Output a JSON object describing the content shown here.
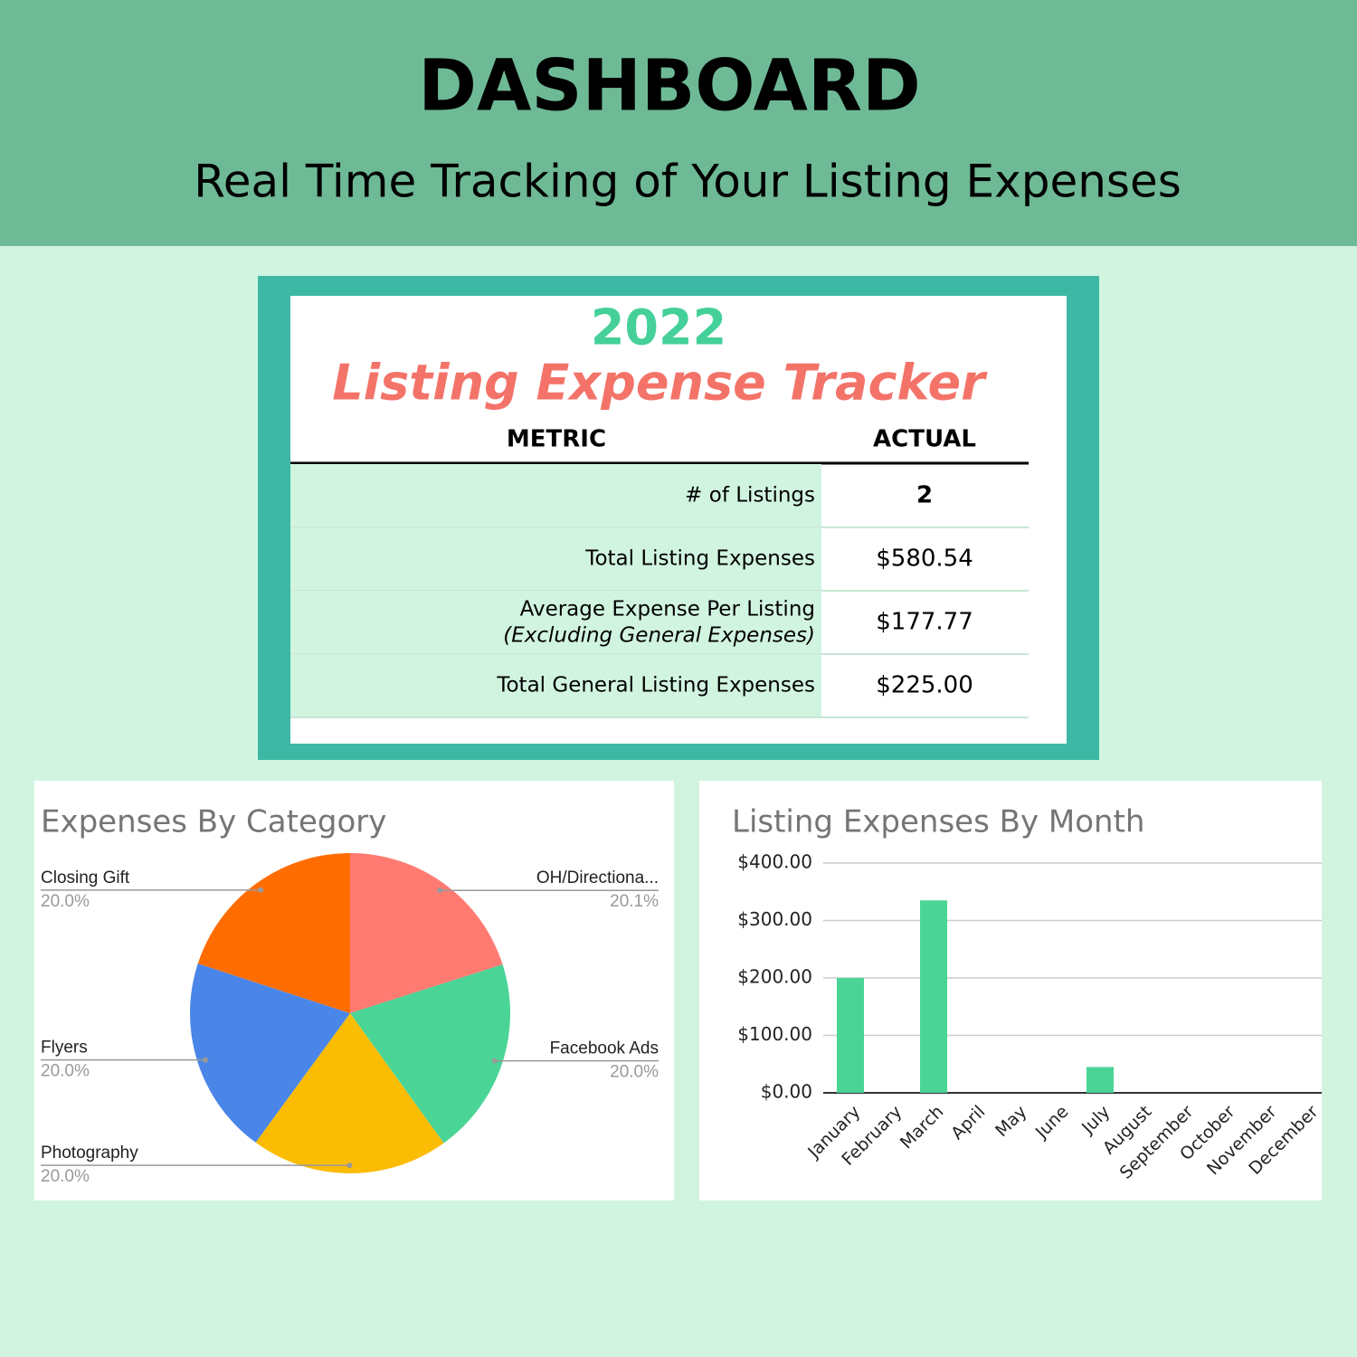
{
  "header": {
    "title": "DASHBOARD",
    "subtitle": "Real Time Tracking of Your Listing Expenses"
  },
  "tracker": {
    "year": "2022",
    "title": "Listing Expense Tracker",
    "columns": [
      "METRIC",
      "ACTUAL"
    ],
    "rows": [
      {
        "metric": "# of Listings",
        "actual": "2"
      },
      {
        "metric": "Total Listing Expenses",
        "actual": "$580.54"
      },
      {
        "metric": "Average Expense Per Listing",
        "note": "(Excluding General Expenses)",
        "actual": "$177.77"
      },
      {
        "metric": "Total General Listing Expenses",
        "actual": "$225.00"
      }
    ]
  },
  "chart_data": [
    {
      "type": "pie",
      "title": "Expenses By Category",
      "categories": [
        "OH/Directiona...",
        "Facebook Ads",
        "Photography",
        "Flyers",
        "Closing Gift"
      ],
      "values": [
        20.1,
        20.0,
        20.0,
        20.0,
        20.0
      ],
      "value_labels": [
        "20.1%",
        "20.0%",
        "20.0%",
        "20.0%",
        "20.0%"
      ],
      "colors": [
        "#ff7b72",
        "#4ad597",
        "#fbbc04",
        "#4a86e8",
        "#ff6d01"
      ]
    },
    {
      "type": "bar",
      "title": "Listing Expenses By Month",
      "categories": [
        "January",
        "February",
        "March",
        "April",
        "May",
        "June",
        "July",
        "August",
        "September",
        "October",
        "November",
        "December"
      ],
      "values": [
        200,
        0,
        335,
        0,
        0,
        0,
        45,
        0,
        0,
        0,
        0,
        0
      ],
      "color": "#4ad597",
      "ylim": [
        0,
        400
      ],
      "yticks": [
        {
          "value": 0,
          "label": "$0.00"
        },
        {
          "value": 100,
          "label": "$100.00"
        },
        {
          "value": 200,
          "label": "$200.00"
        },
        {
          "value": 300,
          "label": "$300.00"
        },
        {
          "value": 400,
          "label": "$400.00"
        }
      ],
      "grid": true
    }
  ]
}
